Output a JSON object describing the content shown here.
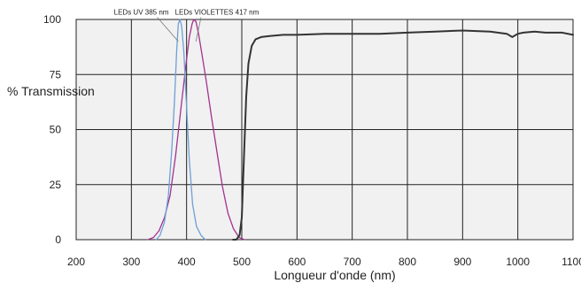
{
  "chart_data": {
    "type": "line",
    "xlabel": "Longueur d'onde (nm)",
    "ylabel": "% Transmission",
    "xlim": [
      200,
      1100
    ],
    "ylim": [
      0,
      100
    ],
    "x_ticks": [
      "200",
      "300",
      "400",
      "500",
      "600",
      "700",
      "800",
      "900",
      "1000",
      "1100"
    ],
    "y_ticks": [
      "0",
      "25",
      "50",
      "75",
      "100"
    ],
    "grid": true,
    "colors": {
      "background": "#f1f1f1",
      "grid": "#222222",
      "transmission": "#333333",
      "uv_led": "#6f9fd6",
      "violet_led": "#a3328f"
    },
    "annotations": [
      {
        "text": "LEDs UV 385 nm",
        "series": "uv_led",
        "label_x": 318,
        "label_y": 102.2,
        "tip_x": 385,
        "tip_y": 90
      },
      {
        "text": "LEDs VIOLETTES 417 nm",
        "series": "violet_led",
        "label_x": 455,
        "label_y": 102.2,
        "tip_x": 417,
        "tip_y": 90
      }
    ],
    "series": [
      {
        "key": "transmission",
        "x": [
          484,
          490,
          496,
          500,
          504,
          508,
          512,
          518,
          525,
          535,
          550,
          575,
          600,
          650,
          700,
          750,
          800,
          850,
          900,
          950,
          980,
          990,
          1000,
          1010,
          1030,
          1050,
          1080,
          1100
        ],
        "y": [
          0,
          0,
          2,
          10,
          38,
          65,
          80,
          88,
          91,
          92,
          92.5,
          93,
          93,
          93.5,
          93.5,
          93.5,
          94,
          94.5,
          95,
          94.5,
          93.5,
          92,
          93.5,
          94,
          94.5,
          94,
          94,
          93
        ]
      },
      {
        "key": "uv_led",
        "x": [
          345,
          352,
          360,
          367,
          373,
          378,
          382,
          385,
          388,
          391,
          395,
          400,
          405,
          411,
          418,
          426,
          434
        ],
        "y": [
          0,
          2,
          8,
          20,
          40,
          63,
          85,
          98,
          100,
          97,
          85,
          60,
          36,
          16,
          6,
          2,
          0
        ]
      },
      {
        "key": "violet_led",
        "x": [
          330,
          340,
          350,
          360,
          370,
          380,
          390,
          400,
          405,
          410,
          413,
          417,
          422,
          428,
          435,
          445,
          455,
          465,
          475,
          485,
          495,
          505
        ],
        "y": [
          0,
          1,
          4,
          10,
          20,
          38,
          60,
          82,
          92,
          98,
          100,
          99,
          93,
          84,
          73,
          56,
          40,
          24,
          12,
          5,
          1,
          0
        ]
      }
    ]
  }
}
